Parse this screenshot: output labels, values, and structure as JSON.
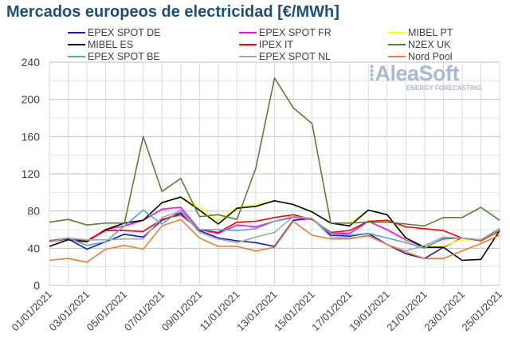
{
  "chart_data": {
    "type": "line",
    "title": "Mercados europeos de electricidad [€/MWh]",
    "x": [
      "01/01/2021",
      "02/01/2021",
      "03/01/2021",
      "04/01/2021",
      "05/01/2021",
      "06/01/2021",
      "07/01/2021",
      "08/01/2021",
      "09/01/2021",
      "10/01/2021",
      "11/01/2021",
      "12/01/2021",
      "13/01/2021",
      "14/01/2021",
      "15/01/2021",
      "16/01/2021",
      "17/01/2021",
      "18/01/2021",
      "19/01/2021",
      "20/01/2021",
      "21/01/2021",
      "22/01/2021",
      "23/01/2021",
      "24/01/2021",
      "25/01/2021"
    ],
    "xtick_labels": [
      "01/01/2021",
      "03/01/2021",
      "05/01/2021",
      "07/01/2021",
      "09/01/2021",
      "11/01/2021",
      "13/01/2021",
      "15/01/2021",
      "17/01/2021",
      "19/01/2021",
      "21/01/2021",
      "23/01/2021",
      "25/01/2021"
    ],
    "ylim": [
      0,
      240
    ],
    "yticks": [
      0,
      40,
      80,
      120,
      160,
      200,
      240
    ],
    "grid": true,
    "legend_position": "top",
    "series": [
      {
        "name": "EPEX SPOT DE",
        "color": "#1515d6",
        "values": [
          47,
          50,
          39,
          47,
          55,
          52,
          70,
          78,
          59,
          51,
          48,
          46,
          42,
          70,
          72,
          54,
          53,
          56,
          44,
          34,
          29,
          41,
          51,
          49,
          61
        ]
      },
      {
        "name": "EPEX SPOT FR",
        "color": "#ff00ff",
        "values": [
          47,
          51,
          48,
          60,
          64,
          70,
          82,
          84,
          60,
          56,
          65,
          63,
          69,
          73,
          71,
          56,
          56,
          69,
          60,
          49,
          41,
          50,
          51,
          49,
          60
        ]
      },
      {
        "name": "MIBEL PT",
        "color": "#ffff00",
        "values": [
          42,
          49,
          47,
          60,
          67,
          70,
          89,
          95,
          84,
          70,
          84,
          87,
          91,
          87,
          79,
          67,
          67,
          81,
          76,
          50,
          42,
          42,
          50,
          48,
          58
        ]
      },
      {
        "name": "MIBEL ES",
        "color": "#000000",
        "values": [
          42,
          49,
          47,
          60,
          67,
          70,
          89,
          95,
          81,
          66,
          83,
          85,
          91,
          87,
          79,
          67,
          64,
          81,
          76,
          51,
          41,
          41,
          27,
          28,
          59
        ]
      },
      {
        "name": "IPEX IT",
        "color": "#ff0000",
        "values": [
          48,
          51,
          48,
          59,
          59,
          58,
          71,
          76,
          60,
          57,
          68,
          69,
          73,
          76,
          71,
          57,
          59,
          69,
          70,
          63,
          61,
          59,
          51,
          48,
          59
        ]
      },
      {
        "name": "N2EX UK",
        "color": "#548235",
        "values": [
          68,
          71,
          65,
          67,
          67,
          160,
          101,
          115,
          74,
          76,
          71,
          126,
          223,
          191,
          174,
          67,
          67,
          68,
          68,
          66,
          64,
          73,
          73,
          84,
          70
        ]
      },
      {
        "name": "EPEX SPOT BE",
        "color": "#4bacc6",
        "values": [
          47,
          51,
          43,
          47,
          64,
          81,
          66,
          81,
          60,
          60,
          59,
          61,
          69,
          74,
          72,
          56,
          54,
          56,
          51,
          46,
          40,
          51,
          51,
          49,
          61
        ]
      },
      {
        "name": "EPEX SPOT NL",
        "color": "#a6a6a6",
        "values": [
          47,
          51,
          49,
          49,
          50,
          50,
          73,
          80,
          57,
          50,
          46,
          52,
          57,
          74,
          72,
          52,
          51,
          53,
          44,
          37,
          43,
          52,
          51,
          49,
          60
        ]
      },
      {
        "name": "Nord Pool",
        "color": "#ed7d31",
        "values": [
          27,
          29,
          25,
          39,
          43,
          39,
          64,
          71,
          51,
          42,
          42,
          37,
          41,
          69,
          54,
          50,
          50,
          54,
          44,
          36,
          29,
          29,
          37,
          45,
          54
        ]
      }
    ]
  },
  "watermark": {
    "brand": "AleaSoft",
    "tagline": "ENERGY FORECASTING"
  }
}
